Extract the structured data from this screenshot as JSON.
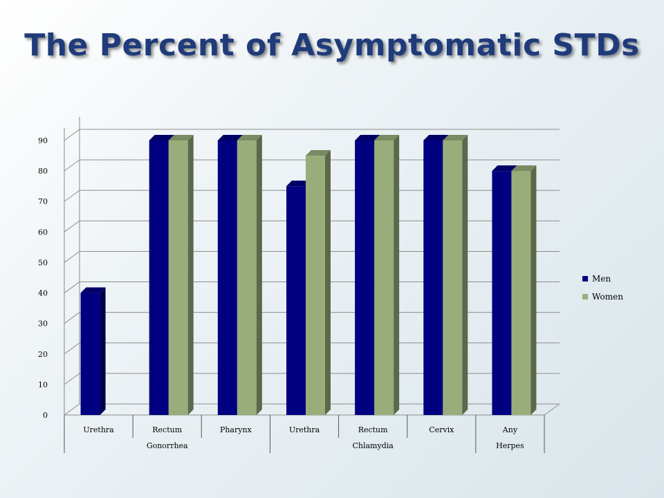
{
  "title": "The Percent of Asymptomatic STDs",
  "colors": {
    "men": "#000080",
    "women": "#99ad7b",
    "title": "#1f3b7a"
  },
  "chart_data": {
    "type": "bar",
    "title": "",
    "xlabel": "",
    "ylabel": "",
    "ylim": [
      0,
      90
    ],
    "yticks": [
      0,
      10,
      20,
      30,
      40,
      50,
      60,
      70,
      80,
      90
    ],
    "grid": true,
    "legend_position": "right",
    "categories": [
      "Urethra",
      "Rectum",
      "Pharynx",
      "Urethra",
      "Rectum",
      "Cervix",
      "Any"
    ],
    "groups": [
      {
        "label": "Gonorrhea",
        "categories": [
          "Urethra",
          "Rectum",
          "Pharynx"
        ]
      },
      {
        "label": "Chlamydia",
        "categories": [
          "Urethra",
          "Rectum",
          "Cervix"
        ]
      },
      {
        "label": "Herpes",
        "categories": [
          "Any"
        ]
      }
    ],
    "series": [
      {
        "name": "Men",
        "values": [
          40,
          90,
          90,
          75,
          90,
          90,
          80
        ]
      },
      {
        "name": "Women",
        "values": [
          null,
          90,
          90,
          85,
          90,
          90,
          80
        ]
      }
    ]
  }
}
